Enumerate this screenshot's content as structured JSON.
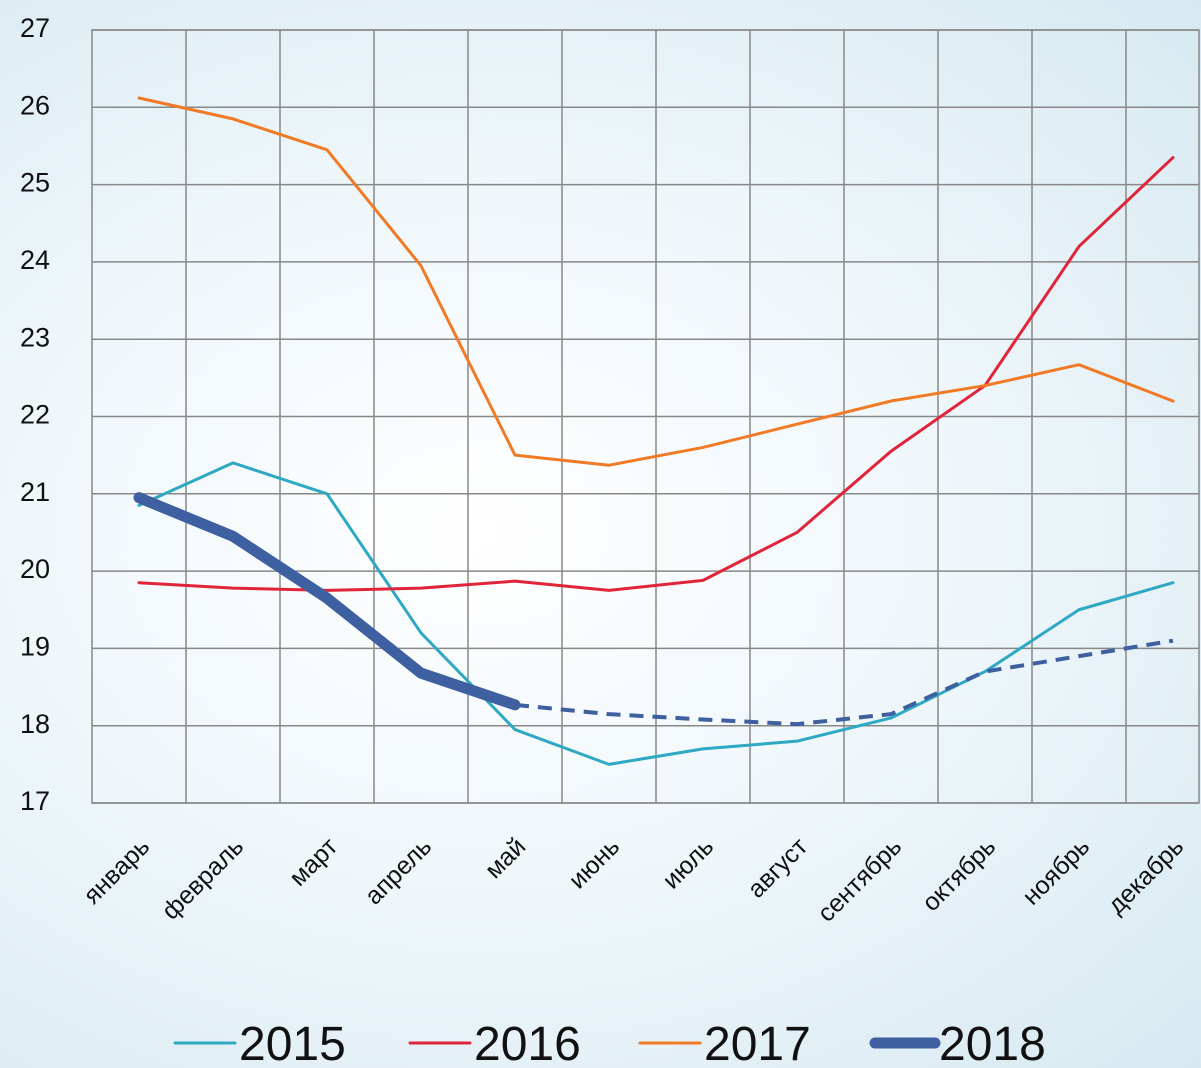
{
  "chart_data": {
    "type": "line",
    "categories": [
      "январь",
      "февраль",
      "март",
      "апрель",
      "май",
      "июнь",
      "июль",
      "август",
      "сентябрь",
      "октябрь",
      "ноябрь",
      "декабрь"
    ],
    "series": [
      {
        "name": "2015",
        "color": "#2fa9c3",
        "width": 3,
        "values": [
          20.85,
          21.4,
          21.0,
          19.2,
          17.95,
          17.5,
          17.7,
          17.8,
          18.1,
          18.7,
          19.5,
          19.85
        ]
      },
      {
        "name": "2016",
        "color": "#e0253a",
        "width": 3,
        "values": [
          19.85,
          19.78,
          19.75,
          19.78,
          19.87,
          19.75,
          19.88,
          20.5,
          21.55,
          22.4,
          24.2,
          25.35
        ]
      },
      {
        "name": "2017",
        "color": "#f07a25",
        "width": 3,
        "values": [
          26.12,
          25.85,
          25.45,
          23.95,
          21.5,
          21.37,
          21.6,
          21.9,
          22.2,
          22.4,
          22.67,
          22.2
        ]
      },
      {
        "name": "2018",
        "color": "#3e5fa0",
        "width": 11,
        "values": [
          20.95,
          20.45,
          19.65,
          18.68,
          18.27,
          null,
          null,
          null,
          null,
          null,
          null,
          null
        ],
        "forecast": [
          null,
          null,
          null,
          null,
          18.27,
          18.15,
          18.08,
          18.02,
          18.15,
          18.7,
          18.9,
          19.1
        ]
      }
    ],
    "ylim": [
      17,
      27
    ],
    "yticks": [
      17,
      18,
      19,
      20,
      21,
      22,
      23,
      24,
      25,
      26,
      27
    ],
    "grid": true
  }
}
